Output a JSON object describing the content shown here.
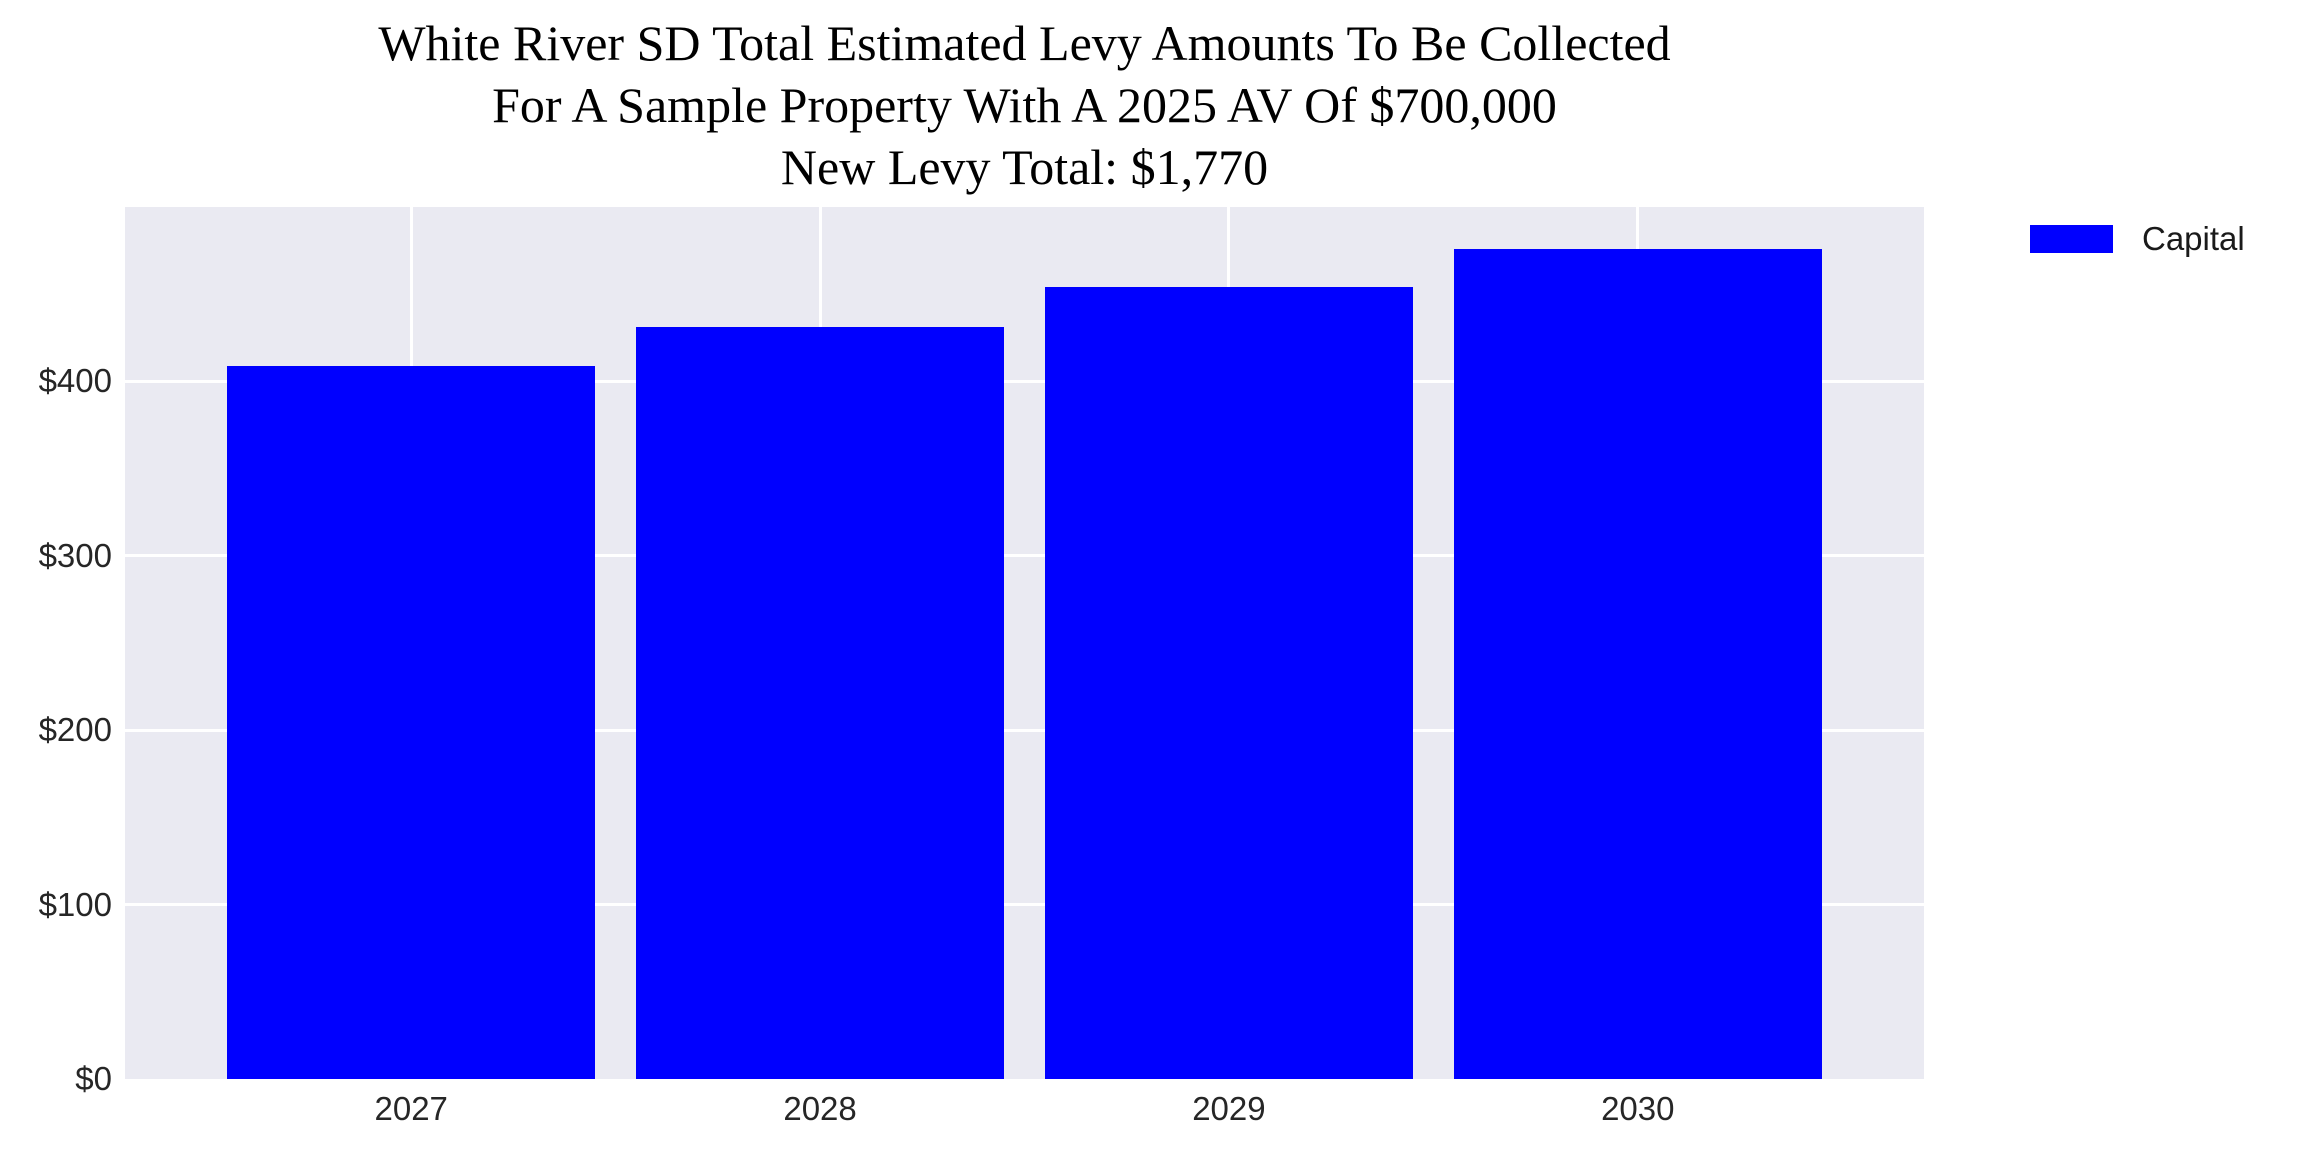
{
  "title": {
    "line1": "White River SD Total Estimated Levy Amounts To Be Collected",
    "line2": "For A Sample Property With A 2025 AV Of $700,000",
    "line3": "New Levy Total: $1,770"
  },
  "legend": {
    "label": "Capital",
    "position": "upper-right-outside-axes"
  },
  "colors": {
    "bar": "#0000FF",
    "plot_background": "#EAEAF2",
    "gridline": "#FFFFFF",
    "tick_text": "#262626",
    "title_text": "#000000"
  },
  "chart_data": {
    "type": "bar",
    "title": "White River SD Total Estimated Levy Amounts To Be Collected For A Sample Property With A 2025 AV Of $700,000 New Levy Total: $1,770",
    "categories": [
      "2027",
      "2028",
      "2029",
      "2030"
    ],
    "series": [
      {
        "name": "Capital",
        "values": [
          409,
          431,
          454,
          476
        ]
      }
    ],
    "values_are_estimates": true,
    "stated_total": "$1,770",
    "xlabel": "",
    "ylabel": "",
    "ylim": [
      0,
      500
    ],
    "yticks": [
      {
        "value": 0,
        "label": "$0"
      },
      {
        "value": 100,
        "label": "$100"
      },
      {
        "value": 200,
        "label": "$200"
      },
      {
        "value": 300,
        "label": "$300"
      },
      {
        "value": 400,
        "label": "$400"
      }
    ],
    "grid": true,
    "grid_color": "#FFFFFF",
    "bar_color": "#0000FF",
    "legend_entries": [
      "Capital"
    ],
    "legend_position": "upper right, outside plot area"
  }
}
